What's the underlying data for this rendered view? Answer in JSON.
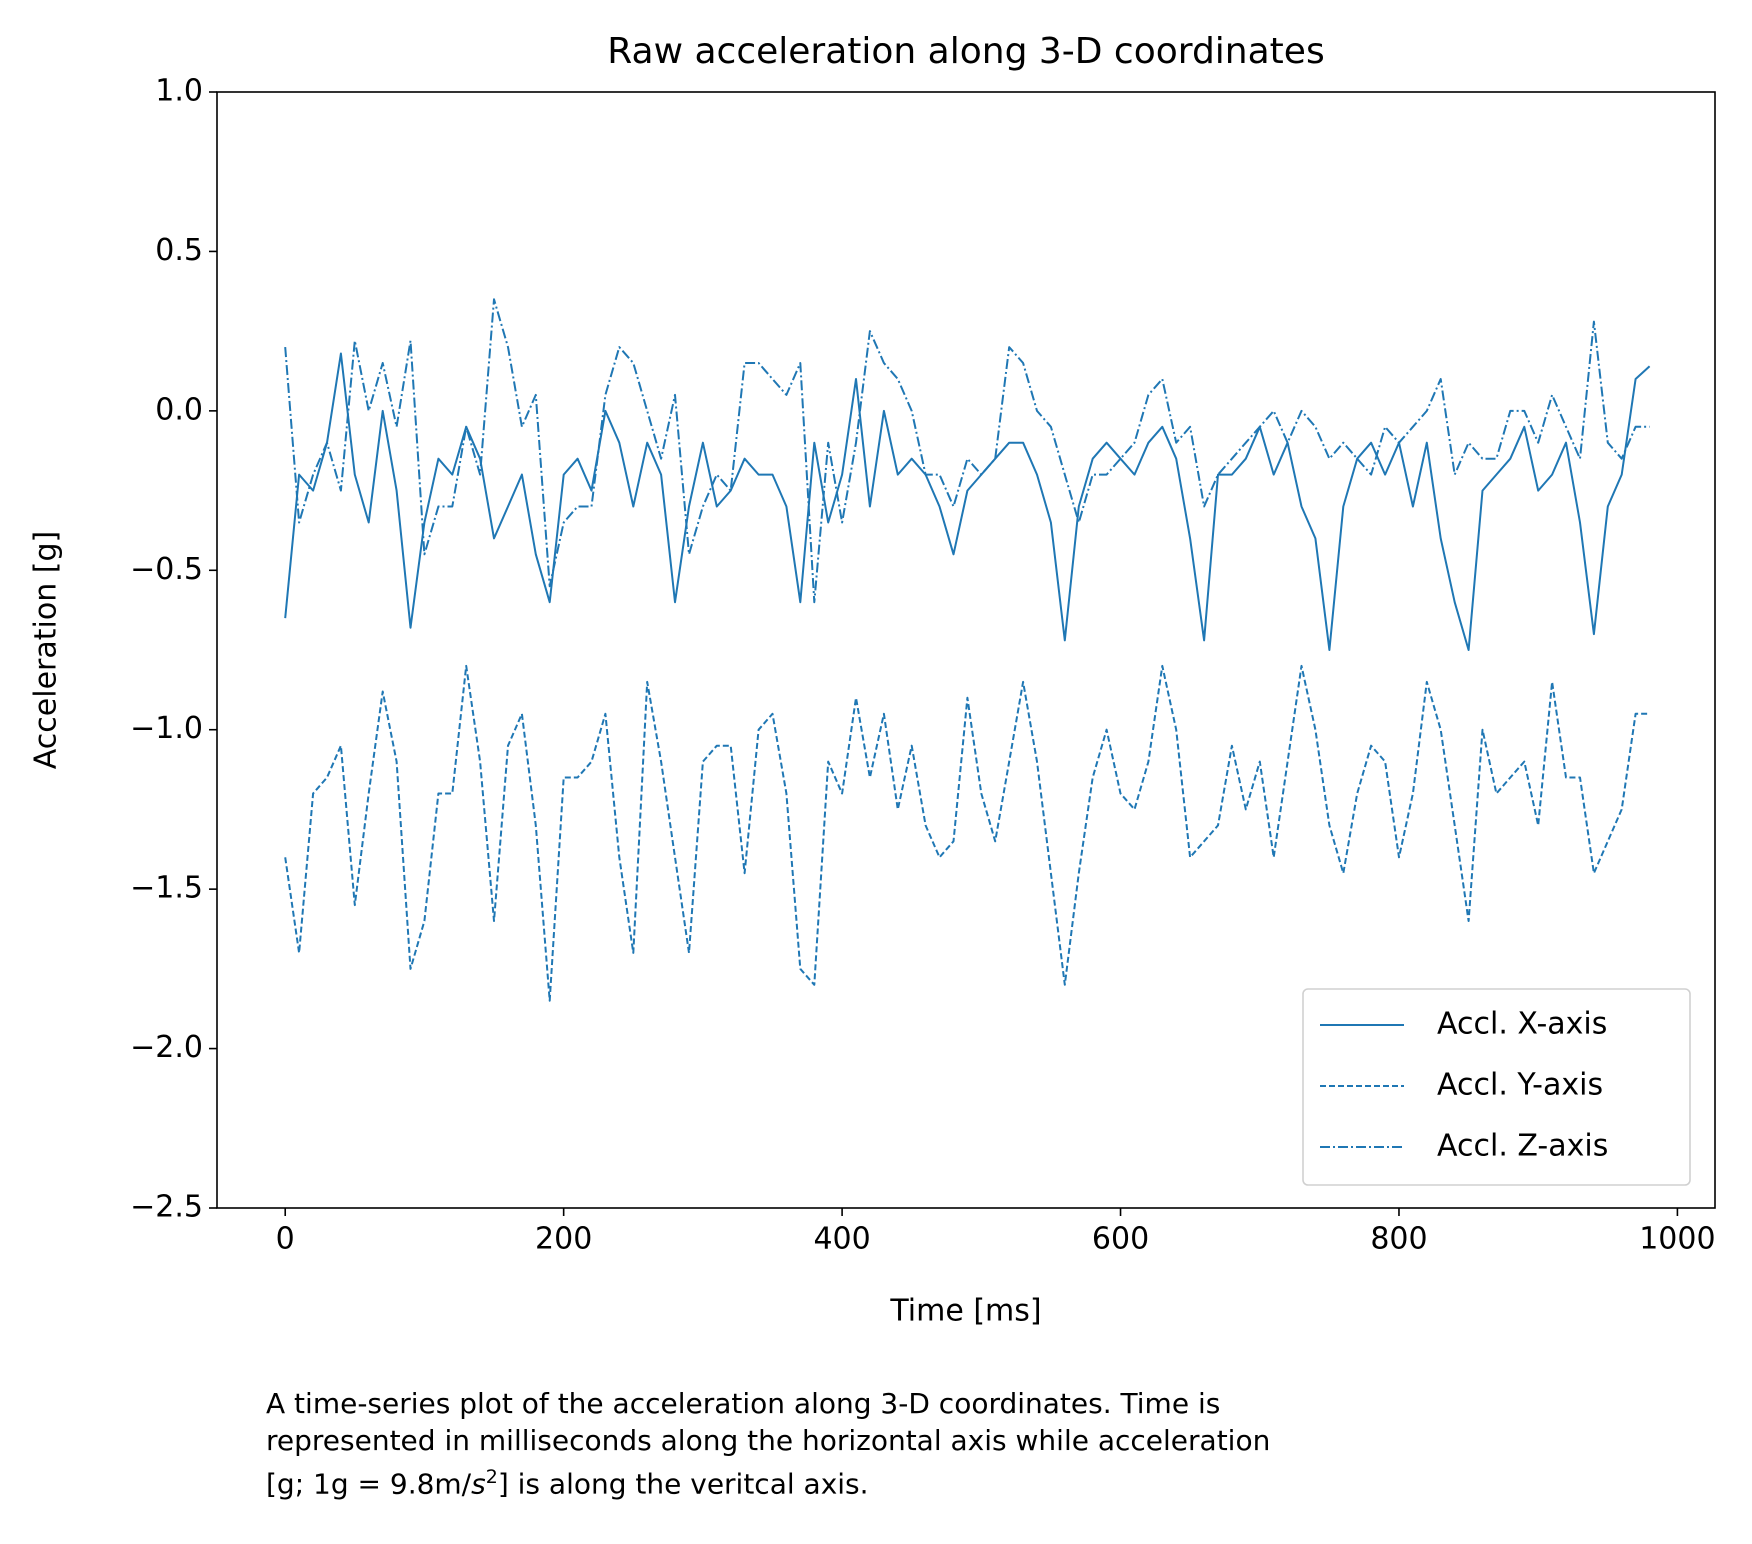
{
  "chart_data": {
    "type": "line",
    "title": "Raw acceleration along 3-D coordinates",
    "xlabel": "Time [ms]",
    "ylabel": "Acceleration [g]",
    "caption": [
      "A time-series plot of the acceleration along 3-D coordinates. Time is",
      "represented in milliseconds along the horizontal axis while acceleration",
      "[g; 1g = 9.8m/",
      "s",
      "2",
      "] is along the veritcal axis."
    ],
    "x": [
      0,
      10,
      20,
      30,
      40,
      50,
      60,
      70,
      80,
      90,
      100,
      110,
      120,
      130,
      140,
      150,
      160,
      170,
      180,
      190,
      200,
      210,
      220,
      230,
      240,
      250,
      260,
      270,
      280,
      290,
      300,
      310,
      320,
      330,
      340,
      350,
      360,
      370,
      380,
      390,
      400,
      410,
      420,
      430,
      440,
      450,
      460,
      470,
      480,
      490,
      500,
      510,
      520,
      530,
      540,
      550,
      560,
      570,
      580,
      590,
      600,
      610,
      620,
      630,
      640,
      650,
      660,
      670,
      680,
      690,
      700,
      710,
      720,
      730,
      740,
      750,
      760,
      770,
      780,
      790,
      800,
      810,
      820,
      830,
      840,
      850,
      860,
      870,
      880,
      890,
      900,
      910,
      920,
      930,
      940,
      950,
      960,
      970,
      980
    ],
    "series": [
      {
        "name": "Accl. X-axis",
        "color": "#1f77b4",
        "dash": "solid",
        "values": [
          -0.65,
          -0.2,
          -0.25,
          -0.1,
          0.18,
          -0.2,
          -0.35,
          0.0,
          -0.25,
          -0.68,
          -0.35,
          -0.15,
          -0.2,
          -0.05,
          -0.15,
          -0.4,
          -0.3,
          -0.2,
          -0.45,
          -0.6,
          -0.2,
          -0.15,
          -0.25,
          0.0,
          -0.1,
          -0.3,
          -0.1,
          -0.2,
          -0.6,
          -0.3,
          -0.1,
          -0.3,
          -0.25,
          -0.15,
          -0.2,
          -0.2,
          -0.3,
          -0.6,
          -0.1,
          -0.35,
          -0.2,
          0.1,
          -0.3,
          0.0,
          -0.2,
          -0.15,
          -0.2,
          -0.3,
          -0.45,
          -0.25,
          -0.2,
          -0.15,
          -0.1,
          -0.1,
          -0.2,
          -0.35,
          -0.72,
          -0.3,
          -0.15,
          -0.1,
          -0.15,
          -0.2,
          -0.1,
          -0.05,
          -0.15,
          -0.4,
          -0.72,
          -0.2,
          -0.2,
          -0.15,
          -0.05,
          -0.2,
          -0.1,
          -0.3,
          -0.4,
          -0.75,
          -0.3,
          -0.15,
          -0.1,
          -0.2,
          -0.1,
          -0.3,
          -0.1,
          -0.4,
          -0.6,
          -0.75,
          -0.25,
          -0.2,
          -0.15,
          -0.05,
          -0.25,
          -0.2,
          -0.1,
          -0.35,
          -0.7,
          -0.3,
          -0.2,
          0.1,
          0.14
        ]
      },
      {
        "name": "Accl. Y-axis",
        "color": "#1f77b4",
        "dash": "dashed",
        "values": [
          -1.4,
          -1.7,
          -1.2,
          -1.15,
          -1.05,
          -1.55,
          -1.2,
          -0.88,
          -1.1,
          -1.75,
          -1.6,
          -1.2,
          -1.2,
          -0.8,
          -1.1,
          -1.6,
          -1.05,
          -0.95,
          -1.3,
          -1.85,
          -1.15,
          -1.15,
          -1.1,
          -0.95,
          -1.4,
          -1.7,
          -0.85,
          -1.1,
          -1.4,
          -1.7,
          -1.1,
          -1.05,
          -1.05,
          -1.45,
          -1.0,
          -0.95,
          -1.2,
          -1.75,
          -1.8,
          -1.1,
          -1.2,
          -0.9,
          -1.15,
          -0.95,
          -1.25,
          -1.05,
          -1.3,
          -1.4,
          -1.35,
          -0.9,
          -1.2,
          -1.35,
          -1.1,
          -0.85,
          -1.1,
          -1.45,
          -1.8,
          -1.45,
          -1.15,
          -1.0,
          -1.2,
          -1.25,
          -1.1,
          -0.8,
          -1.0,
          -1.4,
          -1.35,
          -1.3,
          -1.05,
          -1.25,
          -1.1,
          -1.4,
          -1.1,
          -0.8,
          -1.0,
          -1.3,
          -1.45,
          -1.2,
          -1.05,
          -1.1,
          -1.4,
          -1.2,
          -0.85,
          -1.0,
          -1.3,
          -1.6,
          -1.0,
          -1.2,
          -1.15,
          -1.1,
          -1.3,
          -0.85,
          -1.15,
          -1.15,
          -1.45,
          -1.35,
          -1.25,
          -0.95,
          -0.95
        ]
      },
      {
        "name": "Accl. Z-axis",
        "color": "#1f77b4",
        "dash": "dashdot",
        "values": [
          0.2,
          -0.35,
          -0.2,
          -0.1,
          -0.25,
          0.22,
          0.0,
          0.15,
          -0.05,
          0.22,
          -0.45,
          -0.3,
          -0.3,
          -0.05,
          -0.2,
          0.35,
          0.2,
          -0.05,
          0.05,
          -0.55,
          -0.35,
          -0.3,
          -0.3,
          0.05,
          0.2,
          0.15,
          0.0,
          -0.15,
          0.05,
          -0.45,
          -0.3,
          -0.2,
          -0.25,
          0.15,
          0.15,
          0.1,
          0.05,
          0.15,
          -0.6,
          -0.1,
          -0.35,
          -0.1,
          0.25,
          0.15,
          0.1,
          0.0,
          -0.2,
          -0.2,
          -0.3,
          -0.15,
          -0.2,
          -0.15,
          0.2,
          0.15,
          0.0,
          -0.05,
          -0.2,
          -0.35,
          -0.2,
          -0.2,
          -0.15,
          -0.1,
          0.05,
          0.1,
          -0.1,
          -0.05,
          -0.3,
          -0.2,
          -0.15,
          -0.1,
          -0.05,
          0.0,
          -0.1,
          0.0,
          -0.05,
          -0.15,
          -0.1,
          -0.15,
          -0.2,
          -0.05,
          -0.1,
          -0.05,
          0.0,
          0.1,
          -0.2,
          -0.1,
          -0.15,
          -0.15,
          0.0,
          0.0,
          -0.1,
          0.05,
          -0.05,
          -0.15,
          0.28,
          -0.1,
          -0.15,
          -0.05,
          -0.05
        ]
      }
    ],
    "xlim": [
      -49,
      1027
    ],
    "ylim": [
      -2.5,
      1.0
    ],
    "xticks": [
      0,
      200,
      400,
      600,
      800,
      1000
    ],
    "yticks": [
      {
        "value": -2.5,
        "label": "−2.5"
      },
      {
        "value": -2.0,
        "label": "−2.0"
      },
      {
        "value": -1.5,
        "label": "−1.5"
      },
      {
        "value": -1.0,
        "label": "−1.0"
      },
      {
        "value": -0.5,
        "label": "−0.5"
      },
      {
        "value": 0.0,
        "label": "0.0"
      },
      0.5,
      {
        "value": 1.0,
        "label": "1.0"
      }
    ],
    "legend": "lower right",
    "grid": false
  }
}
